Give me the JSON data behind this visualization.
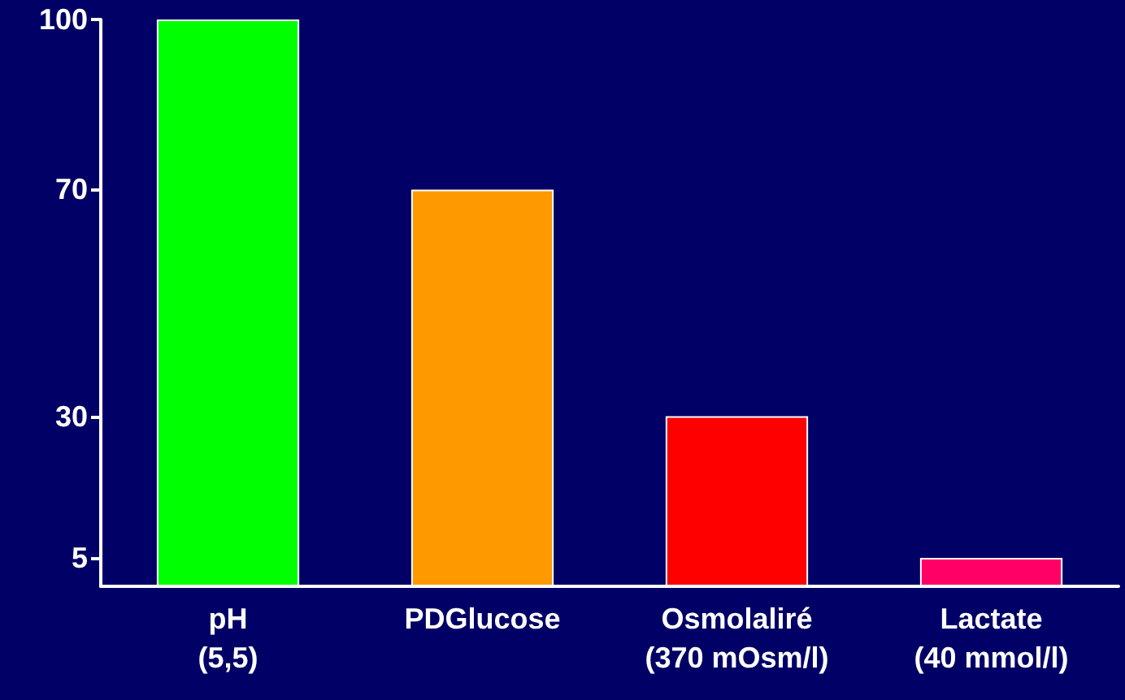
{
  "chart_data": {
    "type": "bar",
    "categories": [
      "pH\n(5,5)",
      "PDGlucose",
      "Osmolaliré\n(370 mOsm/l)",
      "Lactate\n(40 mmol/l)"
    ],
    "values": [
      100,
      70,
      30,
      5
    ],
    "colors": [
      "#00ff00",
      "#ff9900",
      "#ff0000",
      "#ff0066"
    ],
    "ylim": [
      0,
      100
    ],
    "yticks": [
      5,
      30,
      70,
      100
    ]
  }
}
